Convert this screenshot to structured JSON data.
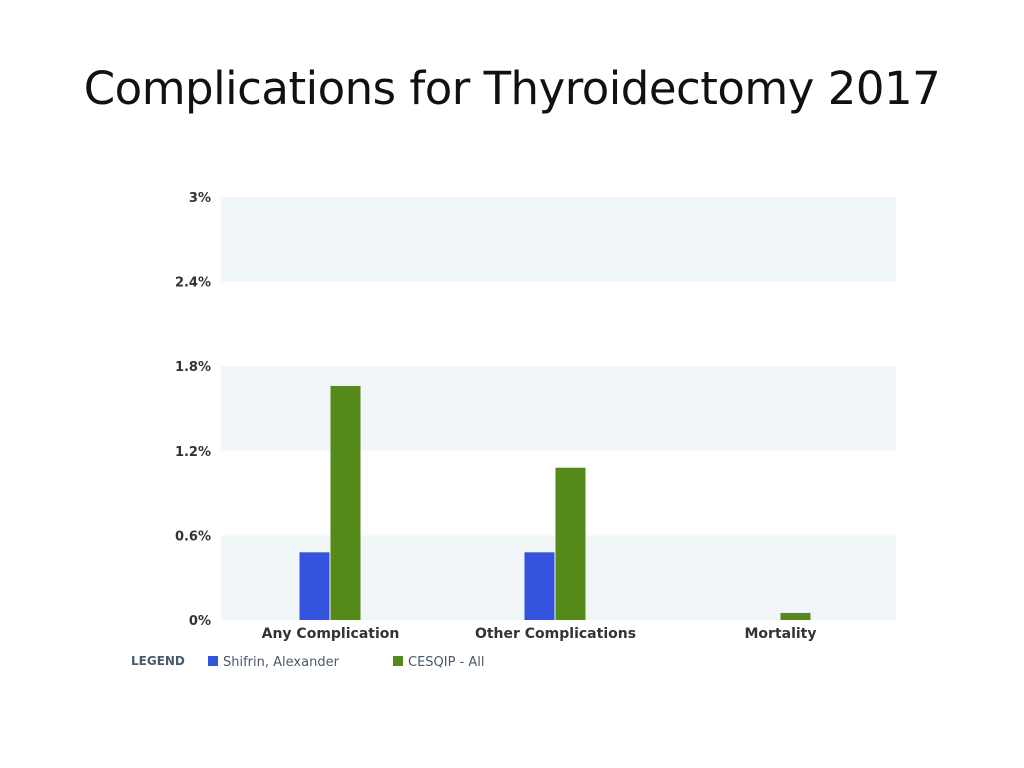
{
  "title": "Complications for Thyroidectomy 2017",
  "legend": {
    "label": "LEGEND"
  },
  "colors": {
    "band": "#f1f6f8",
    "shifrin": "#3352dd",
    "cesqip": "#55891a"
  },
  "chart_data": {
    "type": "bar",
    "categories": [
      "Any Complication",
      "Other Complications",
      "Mortality"
    ],
    "series": [
      {
        "name": "Shifrin, Alexander",
        "values": [
          0.48,
          0.48,
          0
        ]
      },
      {
        "name": "CESQIP - All",
        "values": [
          1.66,
          1.08,
          0.05
        ]
      }
    ],
    "ylim": [
      0,
      3
    ],
    "yticks": [
      0,
      0.6,
      1.2,
      1.8,
      2.4,
      3
    ],
    "ytick_labels": [
      "0%",
      "0.6%",
      "1.2%",
      "1.8%",
      "2.4%",
      "3%"
    ],
    "legend_position": "bottom-left"
  }
}
